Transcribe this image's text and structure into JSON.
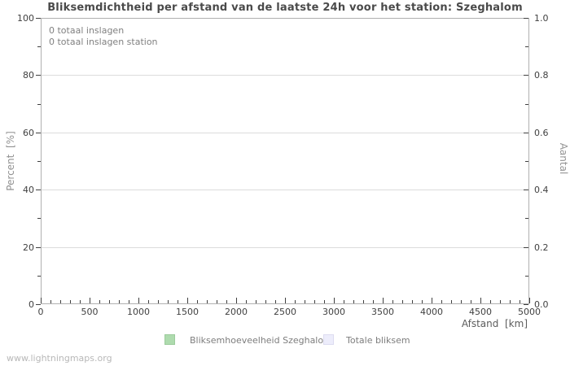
{
  "title": "Bliksemdichtheid per afstand van de laatste 24h voor het station: Szeghalom",
  "annotations": {
    "line1": "0 totaal inslagen",
    "line2": "0 totaal inslagen station"
  },
  "axes": {
    "x": {
      "label": "Afstand  [km]",
      "min": 0,
      "max": 5000,
      "major_step": 500,
      "minor_step": 100,
      "tick_labels": [
        "0",
        "500",
        "1000",
        "1500",
        "2000",
        "2500",
        "3000",
        "3500",
        "4000",
        "4500",
        "5000"
      ]
    },
    "y_left": {
      "label": "Percent  [%]",
      "min": 0,
      "max": 100,
      "major_step": 20,
      "minor_step": 10,
      "tick_labels": [
        "0",
        "20",
        "40",
        "60",
        "80",
        "100"
      ]
    },
    "y_right": {
      "label": "Aantal",
      "min": 0.0,
      "max": 1.0,
      "major_step": 0.2,
      "minor_step": 0.1,
      "tick_labels": [
        "0.0",
        "0.2",
        "0.4",
        "0.6",
        "0.8",
        "1.0"
      ]
    }
  },
  "legend": {
    "items": [
      {
        "label": "Bliksemhoeveelheid Szeghalom",
        "color": "#aedbae"
      },
      {
        "label": "Totale bliksem",
        "color": "#ededfb"
      }
    ]
  },
  "watermark": "www.lightningmaps.org",
  "colors": {
    "title": "#4a4a4a",
    "border": "#b0b0b0",
    "gridline": "#dcdcdc",
    "tick": "#404040",
    "legend_green": "#aedbae",
    "legend_lavender": "#ededfb"
  },
  "chart_data": {
    "type": "line",
    "title": "Bliksemdichtheid per afstand van de laatste 24h voor het station: Szeghalom",
    "xlabel": "Afstand  [km]",
    "ylabel_left": "Percent  [%]",
    "ylabel_right": "Aantal",
    "xlim": [
      0,
      5000
    ],
    "ylim_left": [
      0,
      100
    ],
    "ylim_right": [
      0.0,
      1.0
    ],
    "grid": true,
    "legend_position": "bottom",
    "series": [
      {
        "name": "Bliksemhoeveelheid Szeghalom",
        "color": "#aedbae",
        "x": [],
        "values": []
      },
      {
        "name": "Totale bliksem",
        "color": "#ededfb",
        "x": [],
        "values": []
      }
    ],
    "annotations": [
      "0 totaal inslagen",
      "0 totaal inslagen station"
    ]
  }
}
